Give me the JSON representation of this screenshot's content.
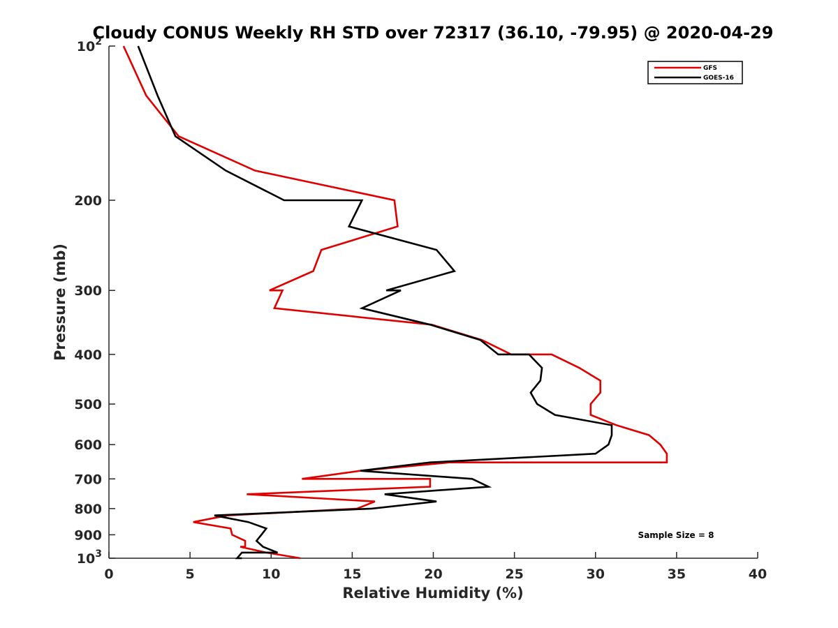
{
  "chart_data": {
    "type": "line",
    "title": "Cloudy CONUS Weekly RH STD over 72317 (36.10, -79.95) @ 2020-04-29",
    "xlabel": "Relative Humidity (%)",
    "ylabel": "Pressure (mb)",
    "xlim": [
      0,
      40
    ],
    "ylim": [
      100,
      1000
    ],
    "y_scale": "log",
    "y_reversed": true,
    "x_ticks": [
      0,
      5,
      10,
      15,
      20,
      25,
      30,
      35,
      40
    ],
    "y_ticks": [
      {
        "value": 100,
        "base": "10",
        "exp": "2"
      },
      {
        "value": 200,
        "label": "200"
      },
      {
        "value": 300,
        "label": "300"
      },
      {
        "value": 400,
        "label": "400"
      },
      {
        "value": 500,
        "label": "500"
      },
      {
        "value": 600,
        "label": "600"
      },
      {
        "value": 700,
        "label": "700"
      },
      {
        "value": 800,
        "label": "800"
      },
      {
        "value": 900,
        "label": "900"
      },
      {
        "value": 1000,
        "base": "10",
        "exp": "3"
      }
    ],
    "grid": false,
    "legend_position": "top-right",
    "annotation": "Sample Size = 8",
    "series": [
      {
        "name": "GFS",
        "color": "#e00000",
        "points": [
          [
            0.9,
            100
          ],
          [
            2.3,
            125
          ],
          [
            4.3,
            150
          ],
          [
            9.0,
            175
          ],
          [
            17.6,
            200
          ],
          [
            17.8,
            225
          ],
          [
            13.1,
            250
          ],
          [
            12.6,
            275
          ],
          [
            9.9,
            300
          ],
          [
            10.7,
            300
          ],
          [
            10.2,
            325
          ],
          [
            19.9,
            350
          ],
          [
            23.0,
            375
          ],
          [
            24.8,
            400
          ],
          [
            27.3,
            400
          ],
          [
            29.0,
            425
          ],
          [
            30.3,
            450
          ],
          [
            30.3,
            475
          ],
          [
            29.7,
            500
          ],
          [
            29.7,
            525
          ],
          [
            31.3,
            550
          ],
          [
            33.3,
            575
          ],
          [
            34.0,
            600
          ],
          [
            34.4,
            625
          ],
          [
            34.4,
            650
          ],
          [
            21.0,
            650
          ],
          [
            15.5,
            675
          ],
          [
            11.9,
            700
          ],
          [
            19.8,
            700
          ],
          [
            19.8,
            725
          ],
          [
            8.5,
            750
          ],
          [
            16.4,
            775
          ],
          [
            15.3,
            800
          ],
          [
            7.3,
            825
          ],
          [
            5.2,
            850
          ],
          [
            7.5,
            875
          ],
          [
            7.6,
            900
          ],
          [
            8.4,
            925
          ],
          [
            8.4,
            950
          ],
          [
            8.1,
            950
          ],
          [
            9.7,
            975
          ],
          [
            11.8,
            1000
          ]
        ]
      },
      {
        "name": "GOES-16",
        "color": "#000000",
        "points": [
          [
            1.8,
            100
          ],
          [
            3.0,
            125
          ],
          [
            4.1,
            150
          ],
          [
            7.2,
            175
          ],
          [
            10.8,
            200
          ],
          [
            15.6,
            200
          ],
          [
            14.8,
            225
          ],
          [
            20.2,
            250
          ],
          [
            21.3,
            275
          ],
          [
            17.1,
            300
          ],
          [
            18.0,
            300
          ],
          [
            15.6,
            325
          ],
          [
            19.8,
            350
          ],
          [
            22.9,
            375
          ],
          [
            24.0,
            400
          ],
          [
            25.9,
            400
          ],
          [
            26.7,
            425
          ],
          [
            26.6,
            450
          ],
          [
            26.0,
            475
          ],
          [
            26.4,
            500
          ],
          [
            27.5,
            525
          ],
          [
            31.0,
            550
          ],
          [
            31.0,
            575
          ],
          [
            30.8,
            600
          ],
          [
            30.0,
            625
          ],
          [
            19.8,
            650
          ],
          [
            15.5,
            675
          ],
          [
            22.4,
            700
          ],
          [
            23.4,
            725
          ],
          [
            17.0,
            750
          ],
          [
            20.2,
            775
          ],
          [
            16.2,
            800
          ],
          [
            6.5,
            825
          ],
          [
            8.6,
            850
          ],
          [
            9.7,
            875
          ],
          [
            9.4,
            900
          ],
          [
            9.1,
            925
          ],
          [
            9.5,
            950
          ],
          [
            10.4,
            975
          ],
          [
            8.2,
            975
          ],
          [
            7.9,
            1000
          ],
          [
            8.2,
            1000
          ]
        ]
      }
    ]
  }
}
